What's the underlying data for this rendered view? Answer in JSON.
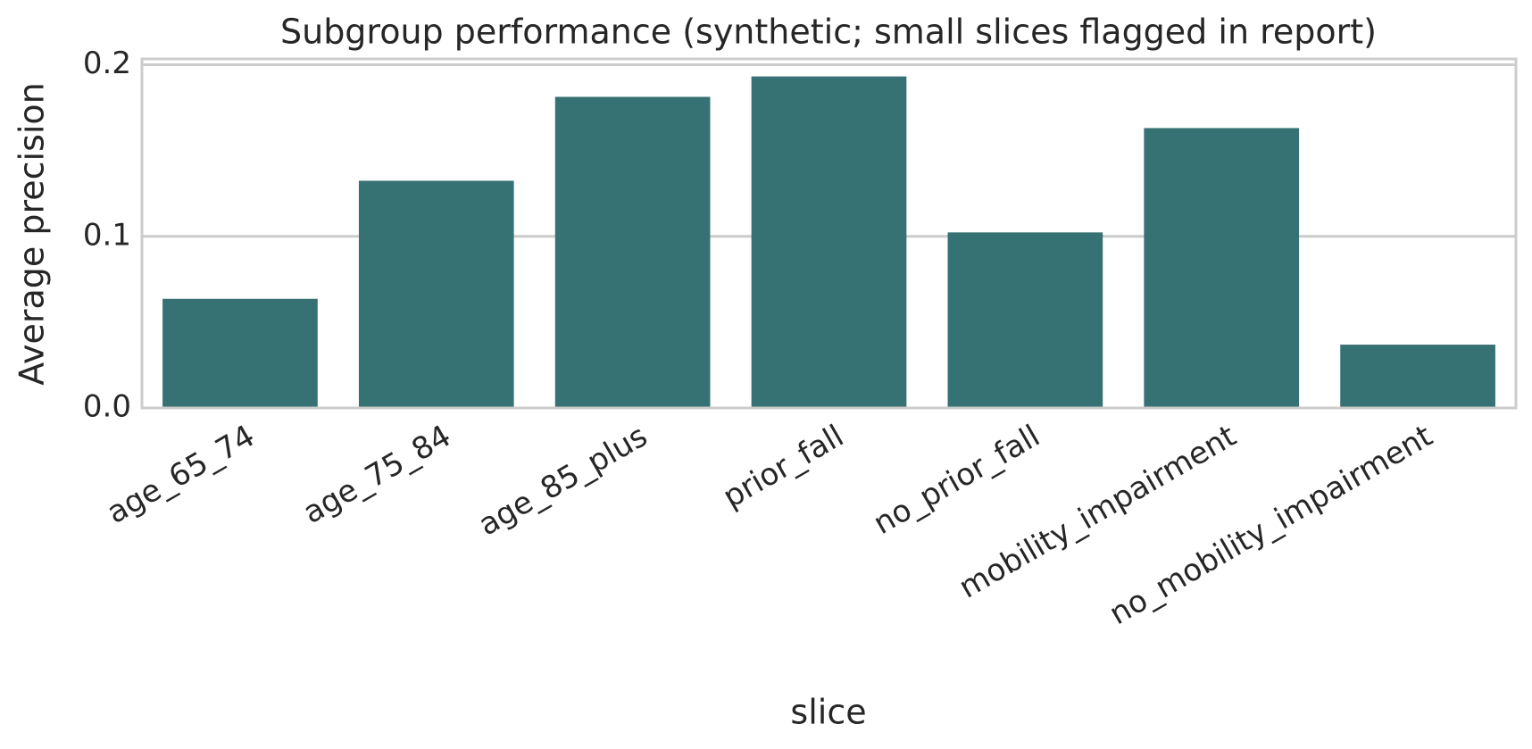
{
  "chart_data": {
    "type": "bar",
    "title": "Subgroup performance (synthetic; small slices flagged in report)",
    "x_label": "slice",
    "y_label": "Average precision",
    "categories": [
      "age_65_74",
      "age_75_84",
      "age_85_plus",
      "prior_fall",
      "no_prior_fall",
      "mobility_impairment",
      "no_mobility_impairment"
    ],
    "values": [
      0.0636,
      0.1324,
      0.1813,
      0.1932,
      0.1023,
      0.1631,
      0.0369
    ],
    "color": "#367173",
    "ylim": [
      0,
      0.2034
    ],
    "yticks": [
      {
        "value": 0,
        "label": "0.0"
      },
      0.1,
      0.2
    ],
    "grid": true
  }
}
